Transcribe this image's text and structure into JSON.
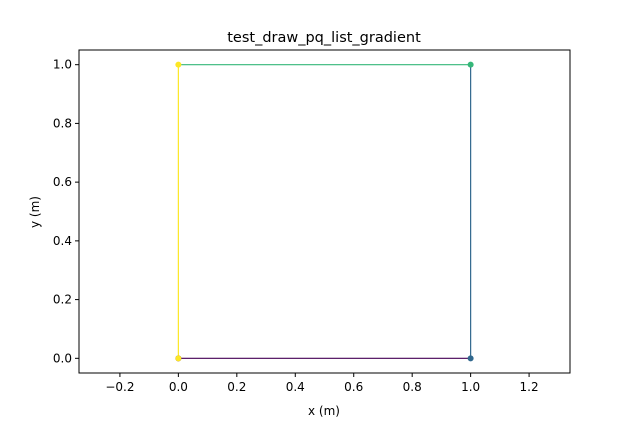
{
  "chart_data": {
    "type": "line",
    "title": "test_draw_pq_list_gradient",
    "xlabel": "x (m)",
    "ylabel": "y (m)",
    "xlim": [
      -0.34,
      1.34
    ],
    "ylim": [
      -0.05,
      1.05
    ],
    "x_ticks": [
      -0.2,
      0.0,
      0.2,
      0.4,
      0.6,
      0.8,
      1.0,
      1.2
    ],
    "x_tick_labels": [
      "−0.2",
      "0.0",
      "0.2",
      "0.4",
      "0.6",
      "0.8",
      "1.0",
      "1.2"
    ],
    "y_ticks": [
      0.0,
      0.2,
      0.4,
      0.6,
      0.8,
      1.0
    ],
    "y_tick_labels": [
      "0.0",
      "0.2",
      "0.4",
      "0.6",
      "0.8",
      "1.0"
    ],
    "grid": false,
    "colormap": "viridis",
    "points": [
      {
        "x": 0.0,
        "y": 0.0
      },
      {
        "x": 1.0,
        "y": 0.0
      },
      {
        "x": 1.0,
        "y": 1.0
      },
      {
        "x": 0.0,
        "y": 1.0
      },
      {
        "x": 0.0,
        "y": 0.0
      }
    ],
    "segment_colors": [
      "#440154",
      "#31688e",
      "#35b779",
      "#fde725"
    ],
    "point_colors": [
      "#440154",
      "#31688e",
      "#35b779",
      "#fde725",
      "#fde725"
    ]
  }
}
